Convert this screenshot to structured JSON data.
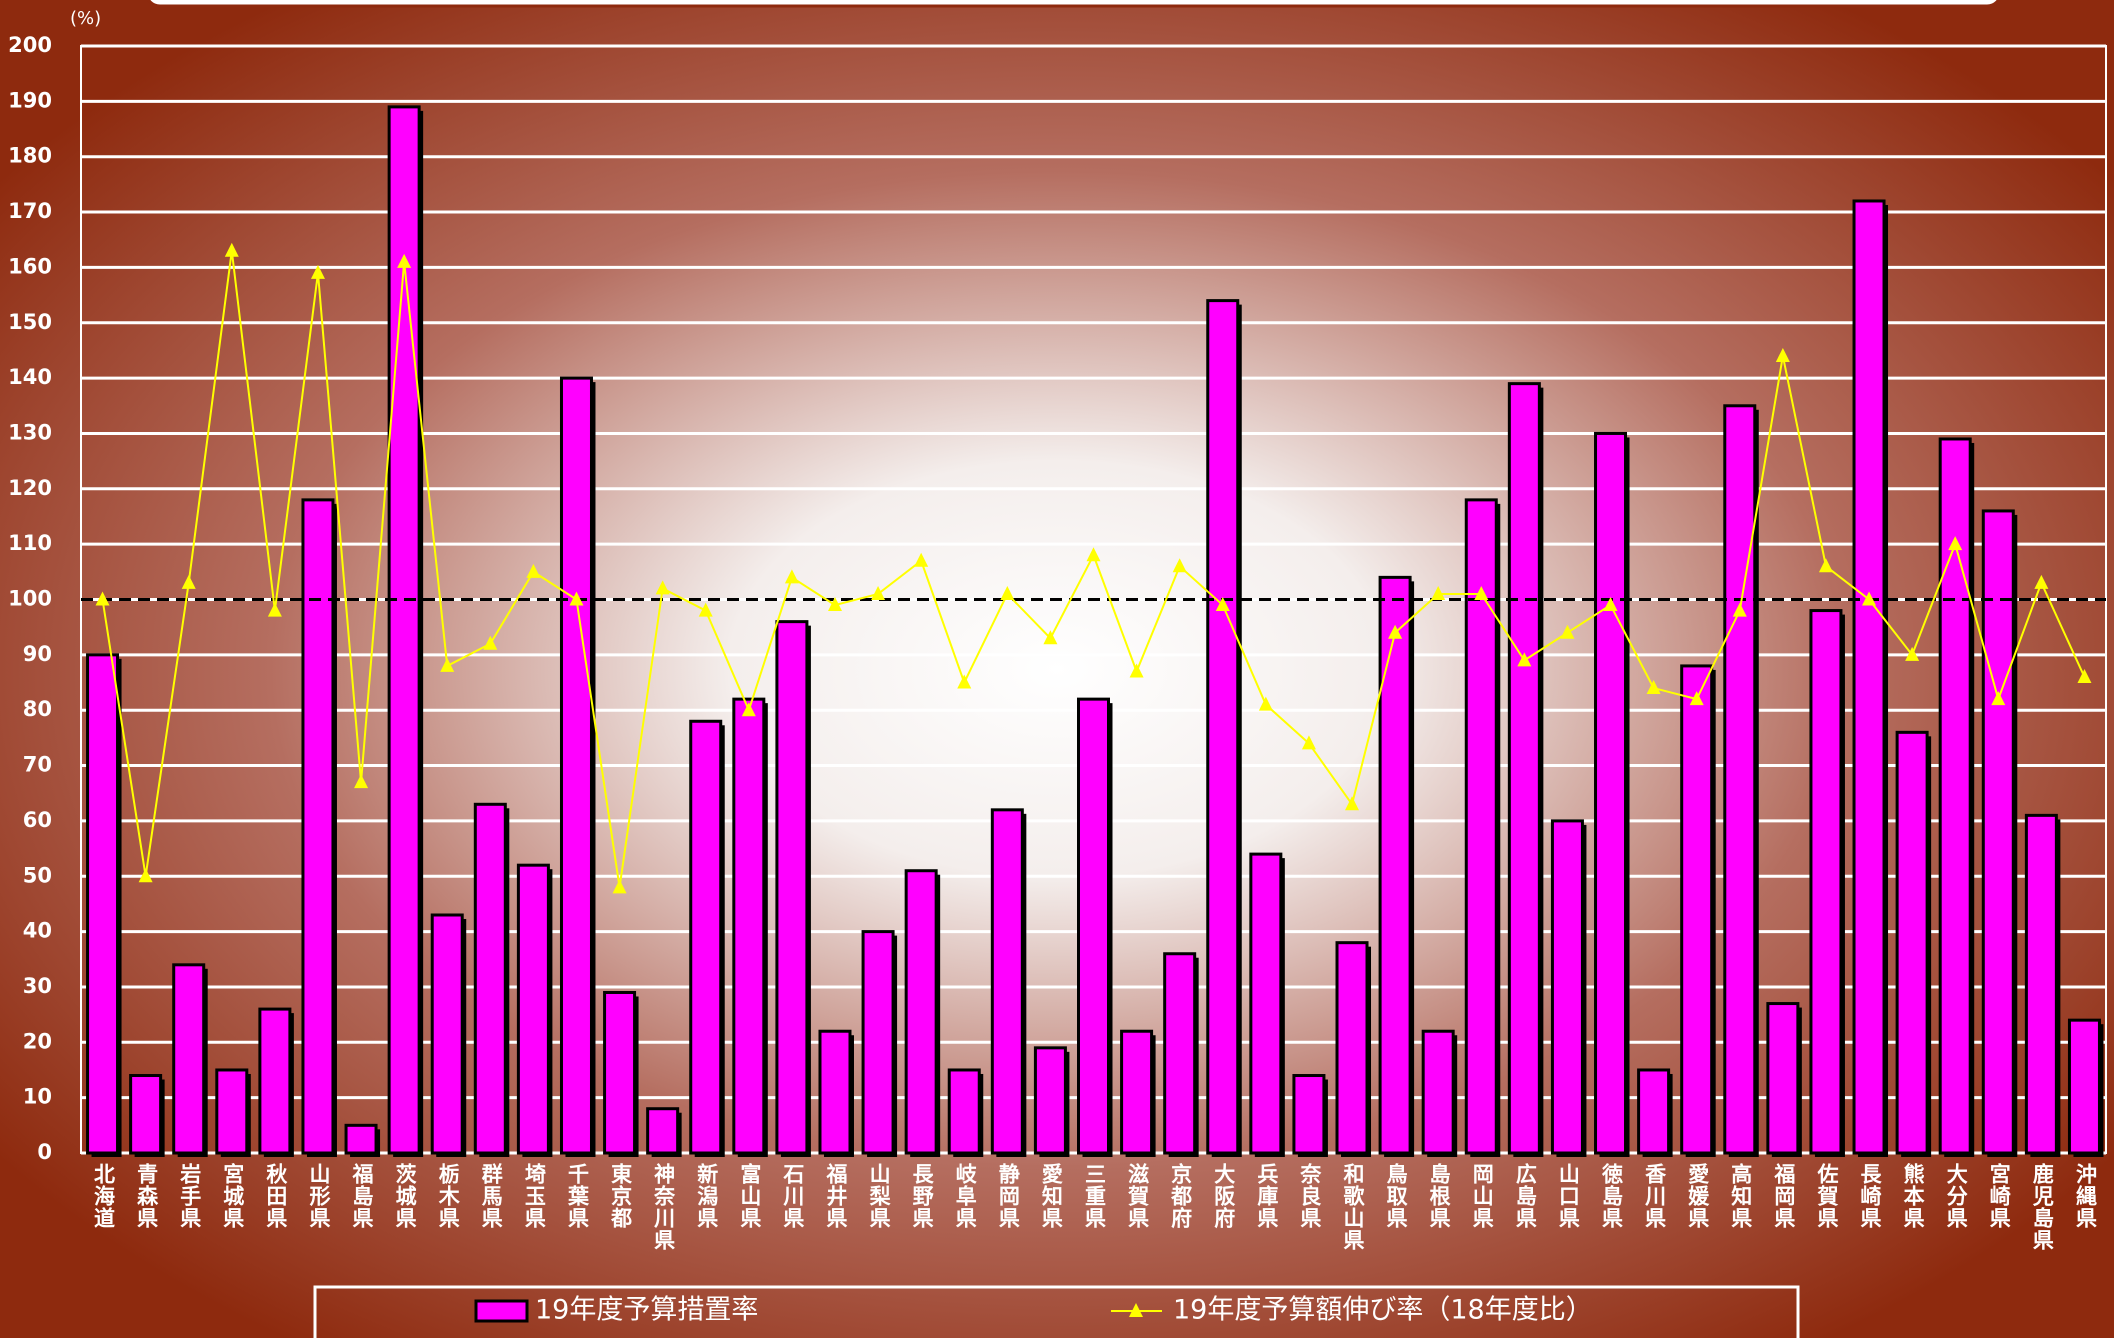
{
  "chart_data": {
    "type": "bar",
    "y_unit_label": "(%)",
    "categories": [
      "北海道",
      "青森県",
      "岩手県",
      "宮城県",
      "秋田県",
      "山形県",
      "福島県",
      "茨城県",
      "栃木県",
      "群馬県",
      "埼玉県",
      "千葉県",
      "東京都",
      "神奈川県",
      "新潟県",
      "富山県",
      "石川県",
      "福井県",
      "山梨県",
      "長野県",
      "岐阜県",
      "静岡県",
      "愛知県",
      "三重県",
      "滋賀県",
      "京都府",
      "大阪府",
      "兵庫県",
      "奈良県",
      "和歌山県",
      "鳥取県",
      "島根県",
      "岡山県",
      "広島県",
      "山口県",
      "徳島県",
      "香川県",
      "愛媛県",
      "高知県",
      "福岡県",
      "佐賀県",
      "長崎県",
      "熊本県",
      "大分県",
      "宮崎県",
      "鹿児島県",
      "沖縄県"
    ],
    "series": [
      {
        "name": "19年度予算措置率",
        "type": "bar",
        "color": "#ff00ff",
        "values": [
          90,
          14,
          34,
          15,
          26,
          118,
          5,
          189,
          43,
          63,
          52,
          140,
          29,
          8,
          78,
          82,
          96,
          22,
          40,
          51,
          15,
          62,
          19,
          82,
          22,
          36,
          154,
          54,
          14,
          38,
          104,
          22,
          118,
          139,
          60,
          130,
          15,
          88,
          135,
          27,
          98,
          172,
          76,
          129,
          116,
          61,
          24
        ]
      },
      {
        "name": "19年度予算額伸び率（18年度比）",
        "type": "line",
        "color": "#ffff00",
        "values": [
          100,
          50,
          103,
          163,
          98,
          159,
          67,
          161,
          88,
          92,
          105,
          100,
          48,
          102,
          98,
          80,
          104,
          99,
          101,
          107,
          85,
          101,
          93,
          108,
          87,
          106,
          99,
          81,
          74,
          63,
          94,
          101,
          101,
          89,
          94,
          99,
          84,
          82,
          98,
          144,
          106,
          100,
          90,
          110,
          82,
          103,
          86
        ]
      }
    ],
    "ylim": [
      0,
      200
    ],
    "yticks": [
      0,
      10,
      20,
      30,
      40,
      50,
      60,
      70,
      80,
      90,
      100,
      110,
      120,
      130,
      140,
      150,
      160,
      170,
      180,
      190,
      200
    ],
    "grid": true,
    "reference_line": 100
  }
}
